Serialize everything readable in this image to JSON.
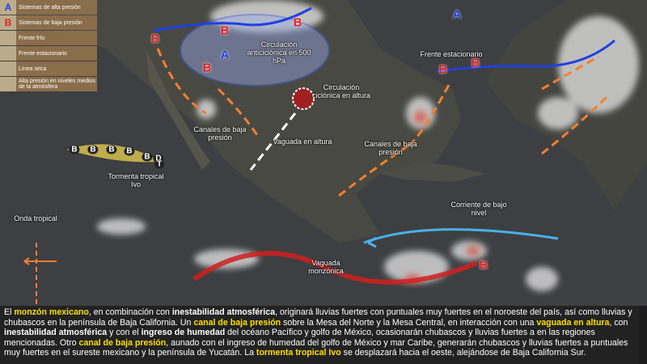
{
  "legend": {
    "items": [
      {
        "symbol": "A",
        "label": "Sistemas de alta presión"
      },
      {
        "symbol": "B",
        "label": "Sistemas de baja presión"
      },
      {
        "label": "Frente frío"
      },
      {
        "label": "Frente estacionario"
      },
      {
        "label": "Línea seca"
      },
      {
        "label": "Alta presión en niveles medios de la atmósfera"
      }
    ]
  },
  "map": {
    "labels": [
      "Circulación anticiclónica en 500 hPa",
      "Circulación ciclónica en altura",
      "Canales de baja presión",
      "Vaguada en altura",
      "Canales de baja presión",
      "Frente estacionario",
      "Tormenta tropical Ivo",
      "Onda tropical",
      "Corriente de bajo nivel",
      "Vaguada monzónica"
    ],
    "markers": [
      "B",
      "B",
      "B",
      "A",
      "B",
      "A",
      "B",
      "B",
      "B",
      "B",
      "B",
      "B",
      "B",
      "D",
      "T",
      "B"
    ]
  },
  "caption": {
    "segments": [
      {
        "text": "El ",
        "style": "plain"
      },
      {
        "text": "monzón mexicano",
        "style": "highlight"
      },
      {
        "text": ", en combinación con ",
        "style": "plain"
      },
      {
        "text": "inestabilidad atmosférica",
        "style": "bold"
      },
      {
        "text": ", originará lluvias fuertes con puntuales muy fuertes en el noroeste del país, así como lluvias y chubascos en la península de Baja California. Un ",
        "style": "plain"
      },
      {
        "text": "canal de baja presión",
        "style": "highlight"
      },
      {
        "text": " sobre la Mesa del Norte y la Mesa Central, en interacción con una ",
        "style": "plain"
      },
      {
        "text": "vaguada en altura",
        "style": "highlight"
      },
      {
        "text": ", con ",
        "style": "plain"
      },
      {
        "text": "inestabilidad atmosférica",
        "style": "bold"
      },
      {
        "text": " y con el ",
        "style": "plain"
      },
      {
        "text": "ingreso de humedad",
        "style": "bold"
      },
      {
        "text": " del océano Pacífico y golfo de México, ocasionarán chubascos y lluvias fuertes a en las regiones mencionadas. Otro ",
        "style": "plain"
      },
      {
        "text": "canal de baja presión",
        "style": "highlight"
      },
      {
        "text": ", aunado con el ingreso de humedad del golfo de México y mar Caribe, generarán chubascos y lluvias fuertes a puntuales muy fuertes en el sureste mexicano y la península de Yucatán. La ",
        "style": "plain"
      },
      {
        "text": "tormenta tropical Ivo",
        "style": "highlight"
      },
      {
        "text": " se desplazará hacia el oeste, alejándose de Baja California Sur.",
        "style": "plain"
      }
    ]
  }
}
